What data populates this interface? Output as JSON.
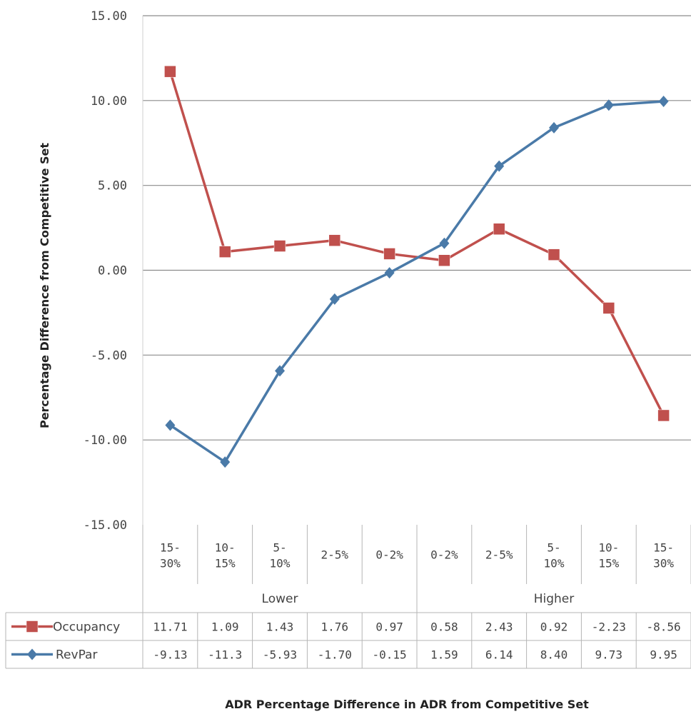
{
  "chart_data": {
    "type": "line",
    "title": "",
    "ylabel": "Percentage Difference from Competitive Set",
    "xlabel": "ADR Percentage Difference in ADR from Competitive Set",
    "ylim": [
      -15,
      15
    ],
    "yticks": [
      "15.00",
      "10.00",
      "5.00",
      "0.00",
      "-5.00",
      "-10.00",
      "-15.00"
    ],
    "categories": [
      [
        "15-",
        "30%"
      ],
      [
        "10-",
        "15%"
      ],
      [
        "5-",
        "10%"
      ],
      [
        "2-5%"
      ],
      [
        "0-2%"
      ],
      [
        "0-2%"
      ],
      [
        "2-5%"
      ],
      [
        "5-",
        "10%"
      ],
      [
        "10-",
        "15%"
      ],
      [
        "15-",
        "30%"
      ]
    ],
    "groups": [
      {
        "label": "Lower",
        "count": 5
      },
      {
        "label": "Higher",
        "count": 5
      }
    ],
    "grid": true,
    "legend": "data-table",
    "series": [
      {
        "name": "Occupancy",
        "color": "#c0504d",
        "marker": "square",
        "values": [
          11.71,
          1.09,
          1.43,
          1.76,
          0.97,
          0.58,
          2.43,
          0.92,
          -2.23,
          -8.56
        ],
        "labels": [
          "11.71",
          "1.09",
          "1.43",
          "1.76",
          "0.97",
          "0.58",
          "2.43",
          "0.92",
          "-2.23",
          "-8.56"
        ]
      },
      {
        "name": "RevPar",
        "color": "#4a7aa8",
        "marker": "diamond",
        "values": [
          -9.13,
          -11.3,
          -5.93,
          -1.7,
          -0.15,
          1.59,
          6.14,
          8.4,
          9.73,
          9.95
        ],
        "labels": [
          "-9.13",
          "-11.3",
          "-5.93",
          "-1.70",
          "-0.15",
          "1.59",
          "6.14",
          "8.40",
          "9.73",
          "9.95"
        ]
      }
    ]
  }
}
